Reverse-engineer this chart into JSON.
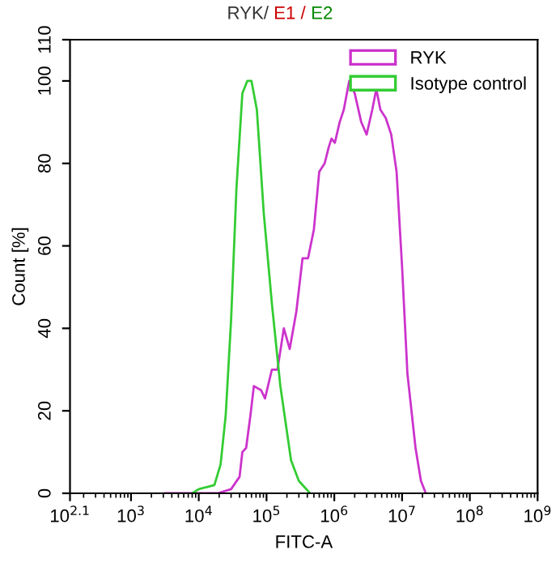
{
  "chart_data": {
    "type": "line",
    "title": "RYK/ E1 / E2",
    "xlabel": "FITC-A",
    "ylabel": "Count [%]",
    "log": "x",
    "xlim": [
      125.9,
      1000000000
    ],
    "xticks": [
      {
        "value": 125.9,
        "label": "10$^{2.1}$"
      },
      {
        "value": 1000,
        "label": "10$^{3}$"
      },
      {
        "value": 10000,
        "label": "10$^{4}$"
      },
      {
        "value": 100000,
        "label": "10$^{5}$"
      },
      {
        "value": 1000000,
        "label": "10$^{6}$"
      },
      {
        "value": 10000000,
        "label": "10$^{7}$"
      },
      {
        "value": 100000000,
        "label": "10$^{8}$"
      },
      {
        "value": 1000000000,
        "label": "10$^{9}$"
      }
    ],
    "ylim": [
      0,
      110
    ],
    "yticks": [
      0,
      20,
      40,
      60,
      80,
      100,
      110
    ],
    "legend": "top right",
    "grid": false,
    "series": [
      {
        "name": "RYK",
        "color": "#cc33cc",
        "x": [
          3200,
          19000,
          30000,
          40000,
          44000,
          50000,
          58000,
          65000,
          83000,
          95000,
          120000,
          145000,
          180000,
          220000,
          275000,
          340000,
          410000,
          500000,
          600000,
          720000,
          830000,
          910000,
          1020000,
          1200000,
          1380000,
          1660000,
          2000000,
          2500000,
          3000000,
          3630000,
          4170000,
          4790000,
          5750000,
          6920000,
          8300000,
          10000000,
          12000000,
          15800000,
          19000000,
          22400000
        ],
        "values": [
          0,
          0,
          1,
          4,
          10,
          11,
          19,
          26,
          25,
          23,
          30,
          30,
          40,
          35,
          44,
          57,
          57,
          64,
          78,
          80,
          84,
          86,
          85,
          90,
          93,
          100,
          97,
          90,
          87,
          93,
          98,
          93,
          91,
          87,
          78,
          55,
          29,
          11,
          3,
          0
        ]
      },
      {
        "name": "Isotype control",
        "color": "#33cc33",
        "x": [
          8000,
          10000,
          17000,
          21000,
          25000,
          30000,
          36000,
          44000,
          52000,
          60000,
          72000,
          91000,
          120000,
          160000,
          230000,
          300000,
          440000
        ],
        "values": [
          0,
          1,
          2,
          7,
          19,
          42,
          74,
          97,
          100,
          100,
          93,
          68,
          46,
          26,
          8,
          3,
          0
        ]
      }
    ]
  }
}
